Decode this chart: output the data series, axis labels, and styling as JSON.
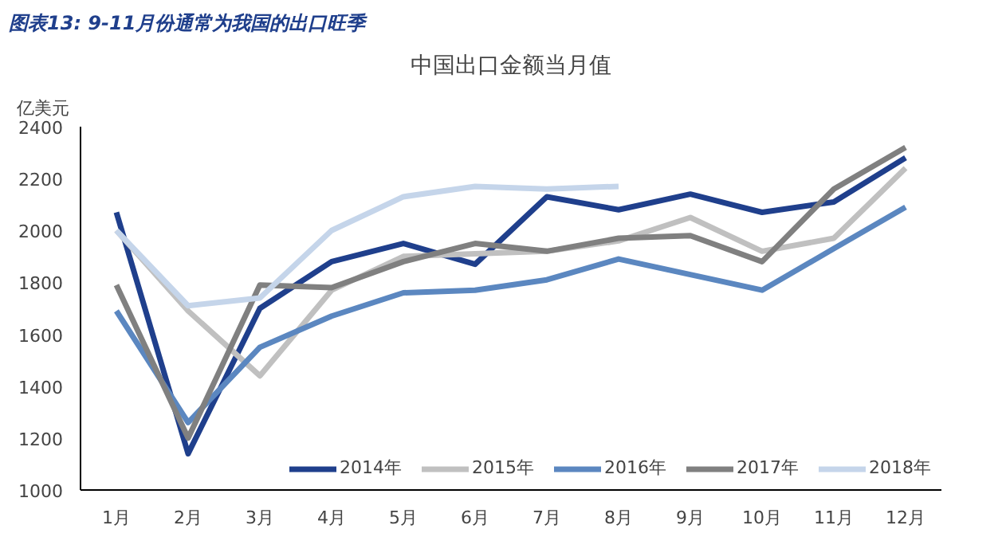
{
  "chart_data": {
    "type": "line",
    "title": "图表13: 9-11月份通常为我国的出口旺季",
    "subtitle": "中国出口金额当月值",
    "ylabel": "亿美元",
    "categories": [
      "1月",
      "2月",
      "3月",
      "4月",
      "5月",
      "6月",
      "7月",
      "8月",
      "9月",
      "10月",
      "11月",
      "12月"
    ],
    "series": [
      {
        "name": "2014年",
        "color": "#1f3f8c",
        "values": [
          2070,
          1140,
          1700,
          1880,
          1950,
          1870,
          2130,
          2080,
          2140,
          2070,
          2110,
          2280
        ]
      },
      {
        "name": "2015年",
        "color": "#c0c0c0",
        "values": [
          2000,
          1690,
          1440,
          1770,
          1900,
          1910,
          1920,
          1960,
          2050,
          1920,
          1970,
          2240
        ]
      },
      {
        "name": "2016年",
        "color": "#5b87c0",
        "values": [
          1690,
          1260,
          1550,
          1670,
          1760,
          1770,
          1810,
          1890,
          1830,
          1770,
          1930,
          2090
        ]
      },
      {
        "name": "2017年",
        "color": "#808080",
        "values": [
          1790,
          1200,
          1790,
          1780,
          1880,
          1950,
          1920,
          1970,
          1980,
          1880,
          2160,
          2320
        ]
      },
      {
        "name": "2018年",
        "color": "#c5d5ea",
        "values": [
          2000,
          1710,
          1740,
          2000,
          2130,
          2170,
          2160,
          2170,
          null,
          null,
          null,
          null
        ]
      }
    ],
    "ylim": [
      1000,
      2400
    ],
    "yticks": [
      1000,
      1200,
      1400,
      1600,
      1800,
      2000,
      2200,
      2400
    ],
    "grid": false,
    "legend": "bottom right",
    "marker": "none",
    "line_style": "solid"
  }
}
